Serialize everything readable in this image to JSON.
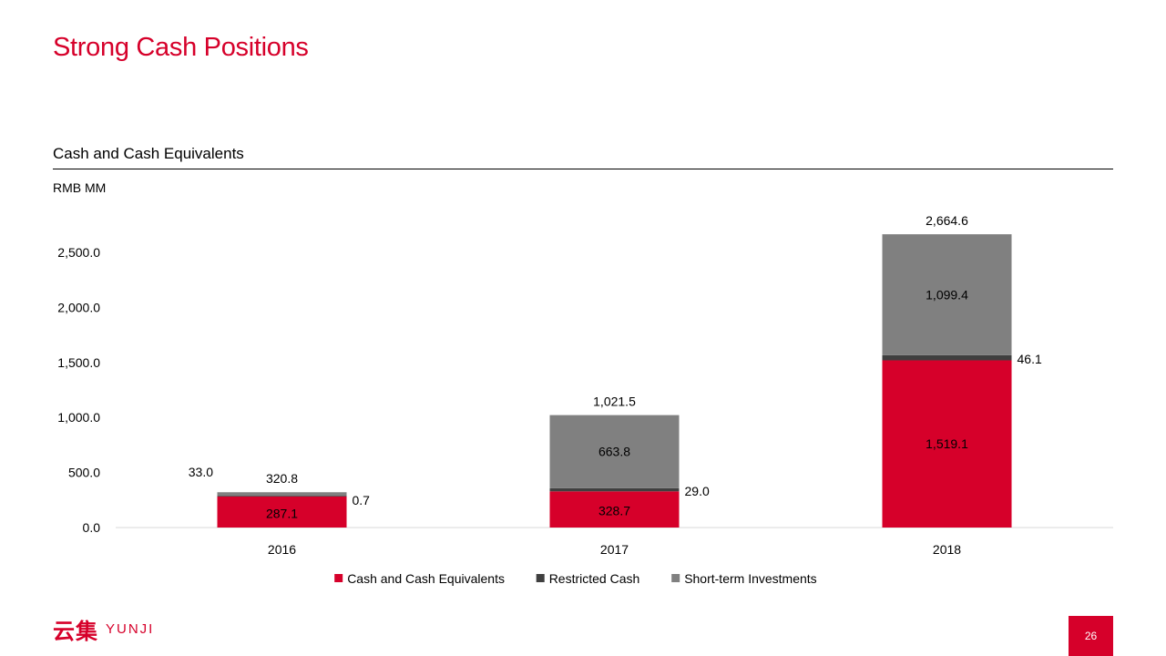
{
  "page": {
    "title": "Strong Cash Positions",
    "section_title": "Cash and Cash Equivalents",
    "unit": "RMB MM",
    "logo_cn": "云集",
    "logo_en": "YUNJI",
    "page_number": "26"
  },
  "colors": {
    "accent": "#d6002a",
    "cash": "#d6002a",
    "restricted": "#3f3f3f",
    "short_term": "#808080"
  },
  "chart_data": {
    "type": "bar",
    "stacked": true,
    "categories": [
      "2016",
      "2017",
      "2018"
    ],
    "series": [
      {
        "name": "Cash and Cash Equivalents",
        "values": [
          287.1,
          328.7,
          1519.1
        ],
        "labels": [
          "287.1",
          "328.7",
          "1,519.1"
        ],
        "color": "#d6002a"
      },
      {
        "name": "Restricted Cash",
        "values": [
          0.7,
          29.0,
          46.1
        ],
        "labels": [
          "0.7",
          "29.0",
          "46.1"
        ],
        "color": "#3f3f3f"
      },
      {
        "name": "Short-term Investments",
        "values": [
          33.0,
          663.8,
          1099.4
        ],
        "labels": [
          "33.0",
          "663.8",
          "1,099.4"
        ],
        "color": "#808080"
      }
    ],
    "totals": [
      320.8,
      1021.5,
      2664.6
    ],
    "total_labels": [
      "320.8",
      "1,021.5",
      "2,664.6"
    ],
    "y_ticks": [
      0,
      500,
      1000,
      1500,
      2000,
      2500
    ],
    "y_tick_labels": [
      "0.0",
      "500.0",
      "1,000.0",
      "1,500.0",
      "2,000.0",
      "2,500.0"
    ],
    "ylim": [
      0,
      2700
    ],
    "legend_position": "bottom",
    "grid": false
  }
}
